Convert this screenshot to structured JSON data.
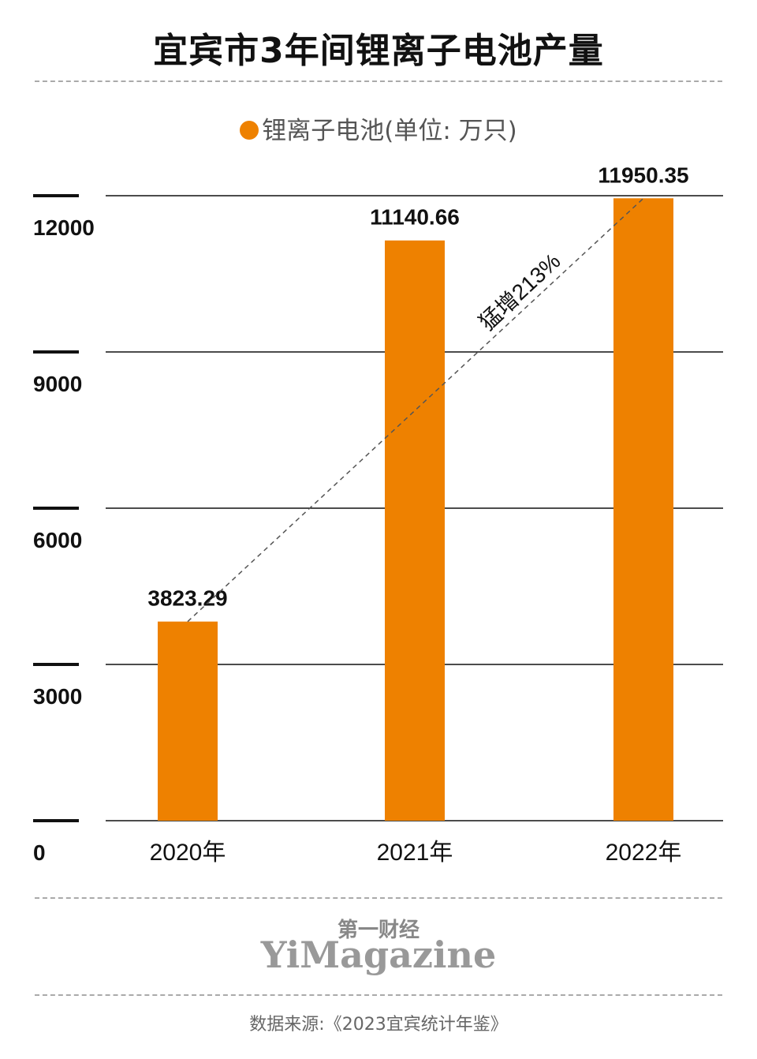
{
  "header": {
    "title": "宜宾市3年间锂离子电池产量"
  },
  "footer": {
    "brand_cn": "第一财经",
    "brand_en": "YiMagazine",
    "source": "数据来源:《2023宜宾统计年鉴》"
  },
  "chart_data": {
    "type": "bar",
    "title": "宜宾市3年间锂离子电池产量",
    "categories": [
      "2020年",
      "2021年",
      "2022年"
    ],
    "series": [
      {
        "name": "锂离子电池(单位: 万只)",
        "values": [
          3823.29,
          11140.66,
          11950.35
        ]
      }
    ],
    "value_labels": [
      "3823.29",
      "11140.66",
      "11950.35"
    ],
    "yticks": [
      0,
      3000,
      6000,
      9000,
      12000
    ],
    "ylim": [
      0,
      12000
    ],
    "annotation": "猛增213%",
    "legend_position": "top-center",
    "grid": true,
    "colors": {
      "bar": "#ee8100",
      "grid": "#111111",
      "trend": "#555555"
    }
  }
}
